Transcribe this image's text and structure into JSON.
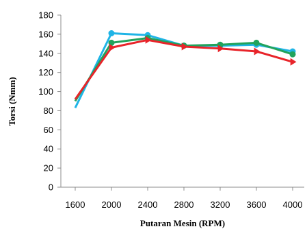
{
  "chart_data": {
    "type": "line",
    "title": "",
    "xlabel": "Putaran  Mesin (RPM)",
    "ylabel": "Torsi  (Nmm)",
    "x": [
      1600,
      2000,
      2400,
      2800,
      3200,
      3600,
      4000
    ],
    "xlim": [
      1600,
      4000
    ],
    "ylim": [
      0,
      180
    ],
    "yticks": [
      0,
      20,
      40,
      60,
      80,
      100,
      120,
      140,
      160,
      180
    ],
    "xtick_labels": [
      "1600",
      "2000",
      "2400",
      "2800",
      "3200",
      "3600",
      "4000"
    ],
    "ytick_labels": [
      "0",
      "20",
      "40",
      "60",
      "80",
      "100",
      "120",
      "140",
      "160",
      "180"
    ],
    "grid": false,
    "legend": "none",
    "series": [
      {
        "color": "#1fb4e6",
        "marker": "circle",
        "x": [
          1600,
          2000,
          2400,
          2800,
          3200,
          3600,
          4000
        ],
        "values": [
          83,
          161,
          159,
          148,
          148,
          149,
          142
        ]
      },
      {
        "color": "#21a35c",
        "marker": "circle",
        "x": [
          1600,
          2000,
          2400,
          2800,
          3200,
          3600,
          4000
        ],
        "values": [
          90,
          151,
          156,
          148,
          149,
          151,
          139
        ]
      },
      {
        "color": "#e8242a",
        "marker": "triangle",
        "x": [
          1600,
          2000,
          2400,
          2800,
          3200,
          3600,
          4000
        ],
        "values": [
          92,
          146,
          154,
          147,
          145,
          142,
          131
        ]
      }
    ]
  }
}
